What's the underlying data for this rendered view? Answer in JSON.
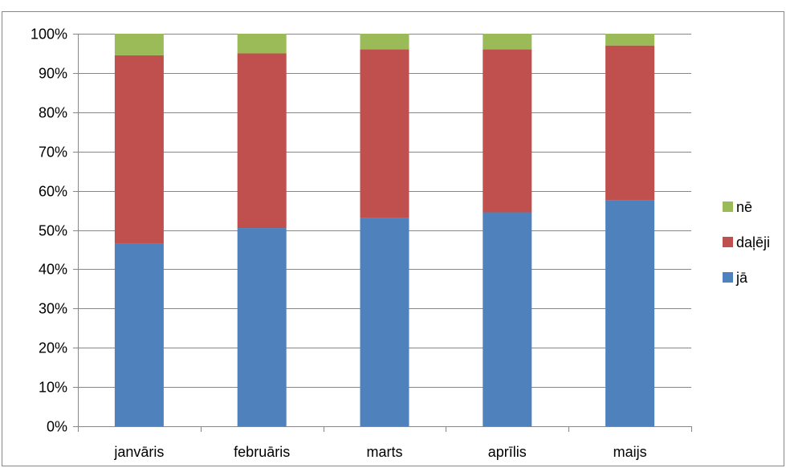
{
  "chart_data": {
    "type": "bar",
    "stacked": true,
    "percent_stacked": true,
    "categories": [
      "janvāris",
      "februāris",
      "marts",
      "aprīlis",
      "maijs"
    ],
    "series": [
      {
        "name": "jā",
        "color": "#4F81BD",
        "values": [
          46.5,
          50.5,
          53,
          54.5,
          57.5
        ]
      },
      {
        "name": "daļēji",
        "color": "#C0504D",
        "values": [
          48,
          44.5,
          43,
          41.5,
          39.5
        ]
      },
      {
        "name": "nē",
        "color": "#9BBB59",
        "values": [
          5.5,
          5,
          4,
          4,
          3
        ]
      }
    ],
    "y_ticks": [
      "0%",
      "10%",
      "20%",
      "30%",
      "40%",
      "50%",
      "60%",
      "70%",
      "80%",
      "90%",
      "100%"
    ],
    "ylim": [
      0,
      100
    ],
    "grid": true,
    "legend_position": "right",
    "legend_order": [
      "nē",
      "daļēji",
      "jā"
    ]
  }
}
